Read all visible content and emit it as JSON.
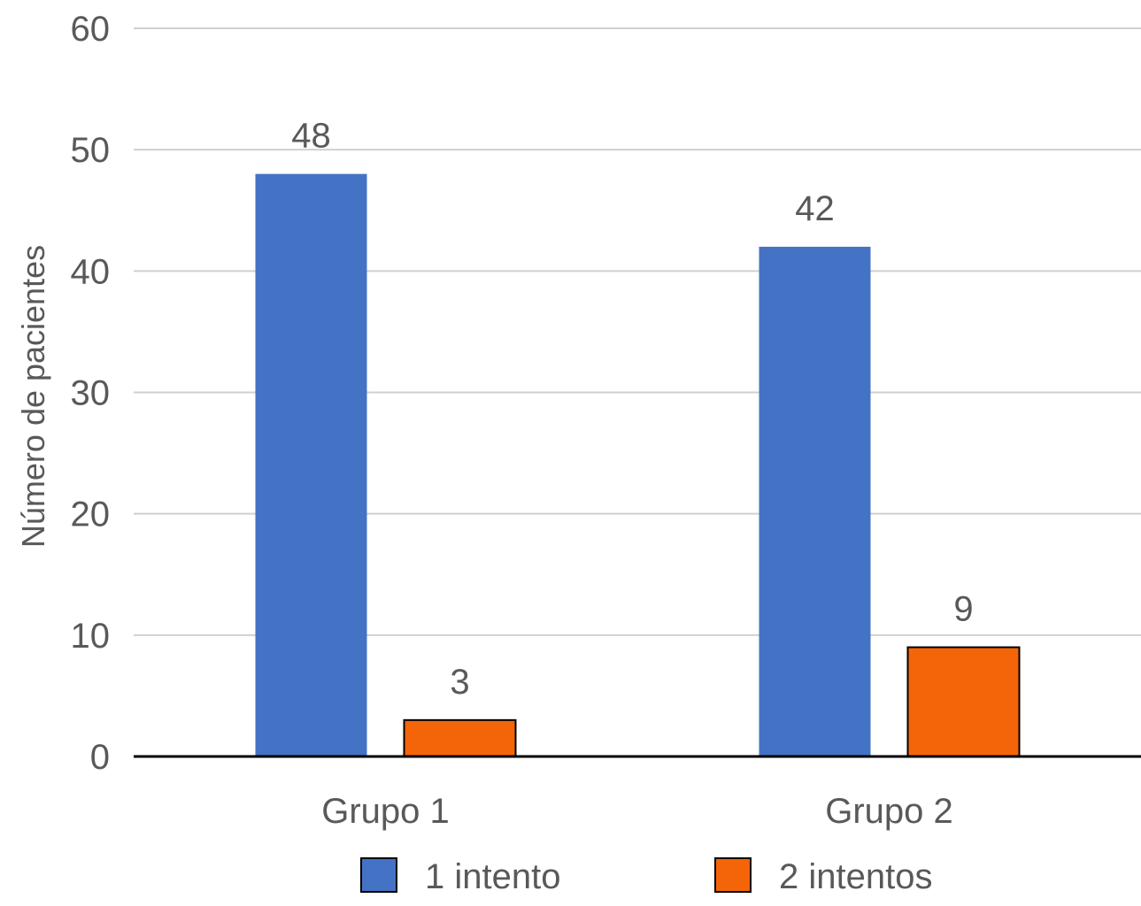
{
  "chart_data": {
    "type": "bar",
    "title": "",
    "xlabel": "",
    "ylabel": "Número de pacientes",
    "categories": [
      "Grupo 1",
      "Grupo 2"
    ],
    "series": [
      {
        "name": "1 intento",
        "values": [
          48,
          42
        ],
        "color": "#4472C4"
      },
      {
        "name": "2 intentos",
        "values": [
          3,
          9
        ],
        "color": "#F4650A"
      }
    ],
    "data_labels": [
      [
        "48",
        "42"
      ],
      [
        "3",
        "9"
      ]
    ],
    "ylim": [
      0,
      60
    ],
    "yticks": [
      0,
      10,
      20,
      30,
      40,
      50,
      60
    ],
    "grid": true,
    "legend": "bottom"
  }
}
